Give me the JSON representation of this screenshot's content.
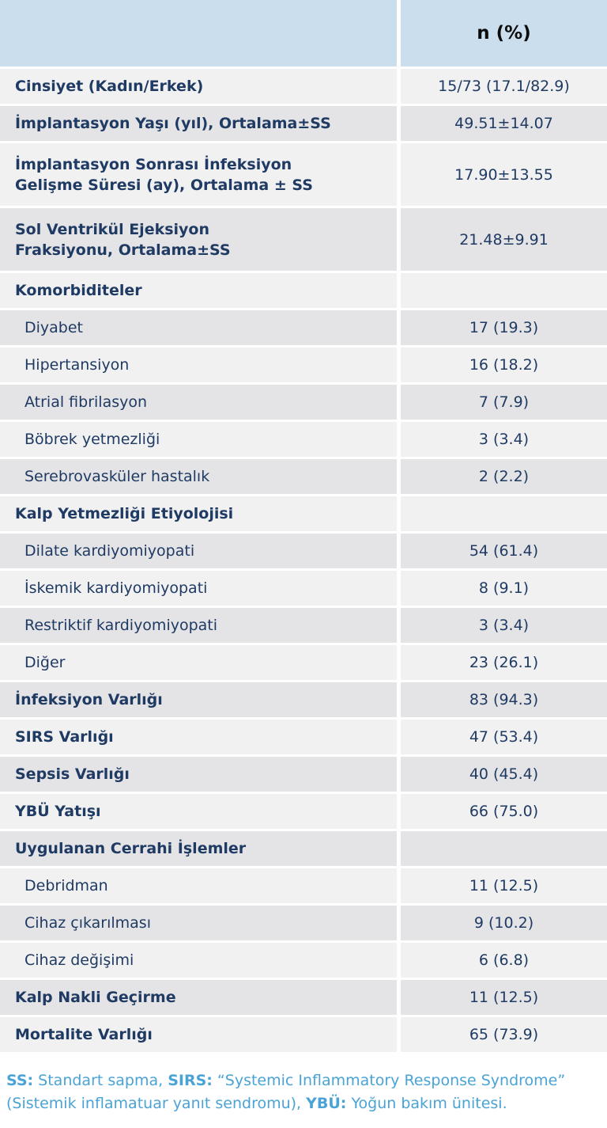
{
  "colors": {
    "header_bg": "#cbdeed",
    "row_light": "#f1f1f2",
    "row_dark": "#e4e4e6",
    "text_navy": "#1f3a63",
    "header_text": "#0d0d0d",
    "footer_blue": "#4aa3d6",
    "page_bg": "#ffffff"
  },
  "table": {
    "header": {
      "label_column": "",
      "value_column": "n (%)"
    },
    "rows": [
      {
        "label": "Cinsiyet (Kadın/Erkek)",
        "value": "15/73 (17.1/82.9)",
        "bold": true,
        "indent": false
      },
      {
        "label": "İmplantasyon Yaşı (yıl), Ortalama±SS",
        "value": "49.51±14.07",
        "bold": true,
        "indent": false
      },
      {
        "label": "İmplantasyon Sonrası İnfeksiyon\nGelişme Süresi (ay), Ortalama ± SS",
        "value": "17.90±13.55",
        "bold": true,
        "indent": false
      },
      {
        "label": "Sol Ventrikül Ejeksiyon\nFraksiyonu, Ortalama±SS",
        "value": "21.48±9.91",
        "bold": true,
        "indent": false
      },
      {
        "label": "Komorbiditeler",
        "value": "",
        "bold": true,
        "indent": false
      },
      {
        "label": "Diyabet",
        "value": "17 (19.3)",
        "bold": false,
        "indent": true
      },
      {
        "label": "Hipertansiyon",
        "value": "16 (18.2)",
        "bold": false,
        "indent": true
      },
      {
        "label": "Atrial fibrilasyon",
        "value": "7 (7.9)",
        "bold": false,
        "indent": true
      },
      {
        "label": "Böbrek yetmezliği",
        "value": "3 (3.4)",
        "bold": false,
        "indent": true
      },
      {
        "label": "Serebrovasküler hastalık",
        "value": "2 (2.2)",
        "bold": false,
        "indent": true
      },
      {
        "label": "Kalp Yetmezliği Etiyolojisi",
        "value": "",
        "bold": true,
        "indent": false
      },
      {
        "label": "Dilate kardiyomiyopati",
        "value": "54 (61.4)",
        "bold": false,
        "indent": true
      },
      {
        "label": "İskemik kardiyomiyopati",
        "value": "8 (9.1)",
        "bold": false,
        "indent": true
      },
      {
        "label": "Restriktif kardiyomiyopati",
        "value": "3 (3.4)",
        "bold": false,
        "indent": true
      },
      {
        "label": "Diğer",
        "value": "23 (26.1)",
        "bold": false,
        "indent": true
      },
      {
        "label": "İnfeksiyon Varlığı",
        "value": "83 (94.3)",
        "bold": true,
        "indent": false
      },
      {
        "label": "SIRS Varlığı",
        "value": "47 (53.4)",
        "bold": true,
        "indent": false
      },
      {
        "label": "Sepsis Varlığı",
        "value": "40 (45.4)",
        "bold": true,
        "indent": false
      },
      {
        "label": "YBÜ Yatışı",
        "value": "66 (75.0)",
        "bold": true,
        "indent": false
      },
      {
        "label": "Uygulanan Cerrahi İşlemler",
        "value": "",
        "bold": true,
        "indent": false
      },
      {
        "label": "Debridman",
        "value": "11 (12.5)",
        "bold": false,
        "indent": true
      },
      {
        "label": "Cihaz çıkarılması",
        "value": "9 (10.2)",
        "bold": false,
        "indent": true
      },
      {
        "label": "Cihaz değişimi",
        "value": "6 (6.8)",
        "bold": false,
        "indent": true
      },
      {
        "label": "Kalp Nakli Geçirme",
        "value": "11 (12.5)",
        "bold": true,
        "indent": false
      },
      {
        "label": "Mortalite Varlığı",
        "value": "65 (73.9)",
        "bold": true,
        "indent": false
      }
    ]
  },
  "footnote": {
    "segments": [
      {
        "text": "SS:",
        "bold": true
      },
      {
        "text": " Standart sapma, ",
        "bold": false
      },
      {
        "text": "SIRS:",
        "bold": true
      },
      {
        "text": " “Systemic Inflammatory Response Syndrome” (Sistemik inflamatuar yanıt sendromu), ",
        "bold": false
      },
      {
        "text": "YBÜ:",
        "bold": true
      },
      {
        "text": " Yoğun bakım ünitesi.",
        "bold": false
      }
    ]
  }
}
